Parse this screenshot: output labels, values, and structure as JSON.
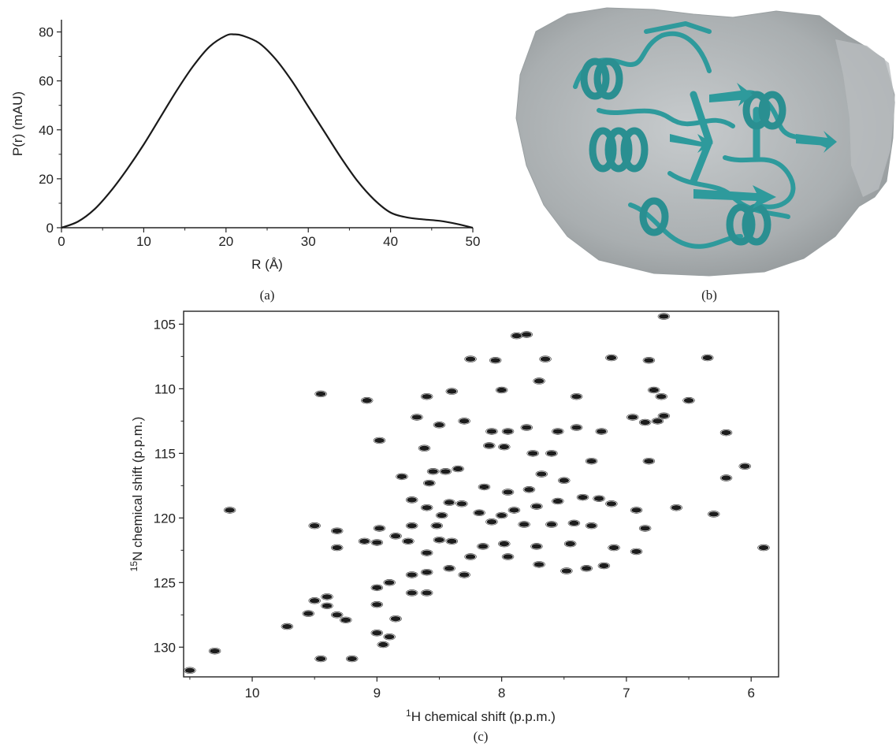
{
  "chart_data": [
    {
      "panel": "a",
      "panel_label": "(a)",
      "type": "line",
      "xlabel": "R (Å)",
      "ylabel": "P(r) (mAU)",
      "xlim": [
        0,
        50
      ],
      "ylim": [
        0,
        85
      ],
      "xticks": [
        0,
        10,
        20,
        30,
        40,
        50
      ],
      "yticks": [
        0,
        20,
        40,
        60,
        80
      ],
      "grid": false,
      "series": [
        {
          "x": [
            0,
            2,
            4,
            6,
            8,
            10,
            12,
            14,
            16,
            18,
            20,
            21,
            22,
            24,
            26,
            28,
            30,
            32,
            34,
            36,
            38,
            40,
            42,
            44,
            46,
            48,
            50
          ],
          "y": [
            0,
            2.5,
            7.5,
            15,
            24,
            34,
            45,
            56,
            66,
            74,
            78.5,
            79,
            78.5,
            75.5,
            69,
            60,
            49.5,
            39,
            28.5,
            19,
            11.5,
            6.2,
            4.2,
            3.4,
            2.8,
            1.6,
            0
          ]
        }
      ]
    },
    {
      "panel": "b",
      "panel_label": "(b)",
      "type": "image",
      "colors": {
        "envelope": "#a9aeb0",
        "cartoon": "#2e9a9c"
      }
    },
    {
      "panel": "c",
      "panel_label": "(c)",
      "type": "scatter",
      "xlabel_sup": "1",
      "xlabel": "H chemical shift (p.p.m.)",
      "ylabel_sup": "15",
      "ylabel": "N chemical shift (p.p.m.)",
      "xlim": [
        10.55,
        5.78
      ],
      "ylim": [
        104.0,
        132.3
      ],
      "x_reversed": true,
      "y_reversed": true,
      "xticks": [
        10,
        9,
        8,
        7,
        6
      ],
      "yticks": [
        105,
        110,
        115,
        120,
        125,
        130
      ],
      "peaks": [
        [
          6.7,
          104.4
        ],
        [
          7.88,
          105.9
        ],
        [
          7.8,
          105.8
        ],
        [
          8.25,
          107.7
        ],
        [
          8.05,
          107.8
        ],
        [
          7.65,
          107.7
        ],
        [
          7.12,
          107.6
        ],
        [
          6.82,
          107.8
        ],
        [
          6.35,
          107.6
        ],
        [
          9.45,
          110.4
        ],
        [
          9.08,
          110.9
        ],
        [
          8.6,
          110.6
        ],
        [
          8.4,
          110.2
        ],
        [
          8.0,
          110.1
        ],
        [
          7.7,
          109.4
        ],
        [
          7.4,
          110.6
        ],
        [
          6.78,
          110.1
        ],
        [
          6.72,
          110.6
        ],
        [
          6.5,
          110.9
        ],
        [
          8.98,
          114.0
        ],
        [
          8.68,
          112.2
        ],
        [
          8.5,
          112.8
        ],
        [
          8.3,
          112.5
        ],
        [
          8.08,
          113.3
        ],
        [
          7.95,
          113.3
        ],
        [
          7.8,
          113.0
        ],
        [
          7.55,
          113.3
        ],
        [
          7.4,
          113.0
        ],
        [
          7.2,
          113.3
        ],
        [
          6.95,
          112.2
        ],
        [
          6.85,
          112.6
        ],
        [
          6.75,
          112.5
        ],
        [
          6.7,
          112.1
        ],
        [
          6.2,
          113.4
        ],
        [
          8.1,
          114.4
        ],
        [
          7.98,
          114.5
        ],
        [
          7.75,
          115.0
        ],
        [
          7.6,
          115.0
        ],
        [
          8.62,
          114.6
        ],
        [
          7.28,
          115.6
        ],
        [
          8.55,
          116.4
        ],
        [
          8.45,
          116.4
        ],
        [
          8.35,
          116.2
        ],
        [
          8.58,
          117.3
        ],
        [
          8.8,
          116.8
        ],
        [
          7.68,
          116.6
        ],
        [
          7.5,
          117.1
        ],
        [
          6.82,
          115.6
        ],
        [
          6.2,
          116.9
        ],
        [
          6.05,
          116.0
        ],
        [
          8.14,
          117.6
        ],
        [
          7.95,
          118.0
        ],
        [
          7.78,
          117.8
        ],
        [
          10.18,
          119.4
        ],
        [
          8.72,
          118.6
        ],
        [
          8.6,
          119.2
        ],
        [
          8.42,
          118.8
        ],
        [
          8.32,
          118.9
        ],
        [
          8.48,
          119.8
        ],
        [
          8.18,
          119.6
        ],
        [
          8.0,
          119.8
        ],
        [
          7.9,
          119.4
        ],
        [
          7.72,
          119.1
        ],
        [
          7.55,
          118.7
        ],
        [
          7.35,
          118.4
        ],
        [
          7.22,
          118.5
        ],
        [
          7.12,
          118.9
        ],
        [
          6.92,
          119.4
        ],
        [
          6.6,
          119.2
        ],
        [
          9.5,
          120.6
        ],
        [
          8.98,
          120.8
        ],
        [
          8.72,
          120.6
        ],
        [
          8.52,
          120.6
        ],
        [
          8.08,
          120.3
        ],
        [
          7.82,
          120.5
        ],
        [
          7.6,
          120.5
        ],
        [
          7.42,
          120.4
        ],
        [
          7.28,
          120.6
        ],
        [
          6.85,
          120.8
        ],
        [
          6.3,
          119.7
        ],
        [
          9.32,
          121.0
        ],
        [
          9.1,
          121.8
        ],
        [
          9.0,
          121.9
        ],
        [
          8.85,
          121.4
        ],
        [
          8.75,
          121.8
        ],
        [
          8.5,
          121.7
        ],
        [
          8.4,
          121.8
        ],
        [
          8.15,
          122.2
        ],
        [
          7.98,
          122.0
        ],
        [
          7.72,
          122.2
        ],
        [
          7.45,
          122.0
        ],
        [
          9.32,
          122.3
        ],
        [
          8.6,
          122.7
        ],
        [
          8.25,
          123.0
        ],
        [
          7.95,
          123.0
        ],
        [
          7.1,
          122.3
        ],
        [
          5.9,
          122.3
        ],
        [
          8.72,
          124.4
        ],
        [
          8.42,
          123.9
        ],
        [
          8.3,
          124.4
        ],
        [
          8.6,
          124.2
        ],
        [
          7.7,
          123.6
        ],
        [
          7.48,
          124.1
        ],
        [
          7.32,
          123.9
        ],
        [
          7.18,
          123.7
        ],
        [
          6.92,
          122.6
        ],
        [
          9.0,
          125.4
        ],
        [
          8.9,
          125.0
        ],
        [
          8.72,
          125.8
        ],
        [
          8.6,
          125.8
        ],
        [
          9.4,
          126.1
        ],
        [
          9.5,
          126.4
        ],
        [
          9.4,
          126.8
        ],
        [
          9.55,
          127.4
        ],
        [
          9.32,
          127.5
        ],
        [
          9.25,
          127.9
        ],
        [
          9.72,
          128.4
        ],
        [
          9.0,
          126.7
        ],
        [
          8.85,
          127.8
        ],
        [
          9.0,
          128.9
        ],
        [
          8.9,
          129.2
        ],
        [
          8.95,
          129.8
        ],
        [
          10.3,
          130.3
        ],
        [
          9.45,
          130.9
        ],
        [
          9.2,
          130.9
        ],
        [
          10.5,
          131.8
        ]
      ]
    }
  ]
}
